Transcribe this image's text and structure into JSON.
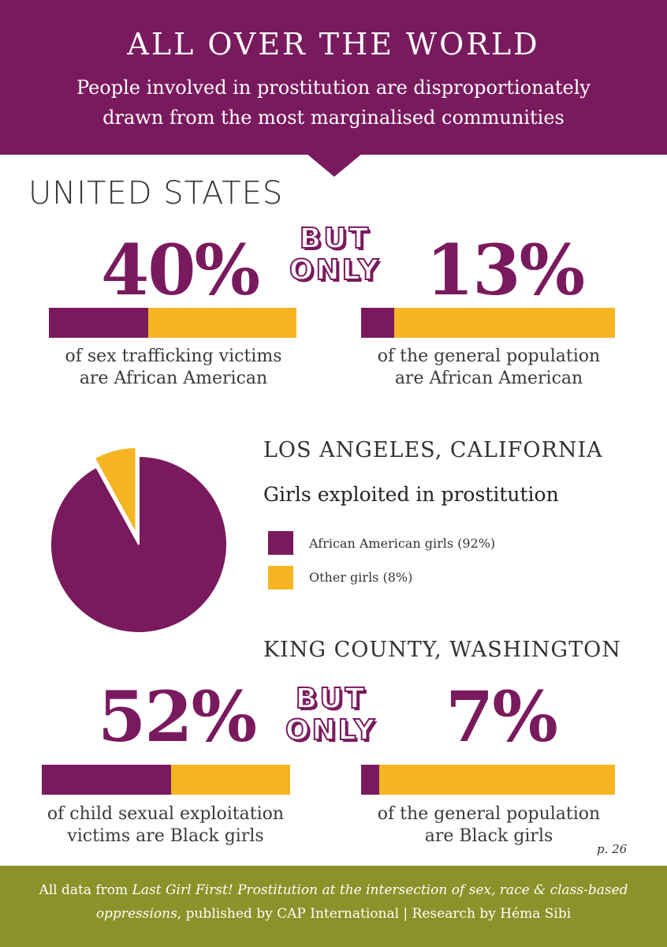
{
  "header": {
    "title": "ALL OVER THE WORLD",
    "subtitle_line1": "People involved in prostitution are disproportionately",
    "subtitle_line2": "drawn from the most marginalised communities"
  },
  "colors": {
    "purple": "#7a1a5e",
    "yellow": "#f5b523",
    "olive": "#8c9229"
  },
  "us": {
    "region": "UNITED STATES",
    "left_stat": "40%",
    "but_label": "BUT",
    "only_label": "ONLY",
    "right_stat": "13%",
    "left_caption_line1": "of sex trafficking victims",
    "left_caption_line2": "are African American",
    "right_caption_line1": "of the general population",
    "right_caption_line2": "are African American"
  },
  "la": {
    "region": "LOS ANGELES, CALIFORNIA",
    "chart_title": "Girls exploited in prostitution",
    "legend": [
      {
        "label": "African American girls (92%)",
        "color": "#7a1a5e"
      },
      {
        "label": "Other girls (8%)",
        "color": "#f5b523"
      }
    ]
  },
  "king": {
    "region": "KING COUNTY, WASHINGTON",
    "left_stat": "52%",
    "but_label": "BUT",
    "only_label": "ONLY",
    "right_stat": "7%",
    "left_caption_line1": "of child sexual exploitation",
    "left_caption_line2": "victims are Black girls",
    "right_caption_line1": "of the general population",
    "right_caption_line2": "are Black girls"
  },
  "page_number": "p. 26",
  "footer": {
    "prefix": "All data from ",
    "source_title_part1": "Last Girl First! Prostitution at the intersection of sex, race & class-based",
    "source_title_part2": "oppressions",
    "suffix": ", published by CAP International | Research by Héma Sibi"
  },
  "chart_data": [
    {
      "type": "bar",
      "categories": [
        "of sex trafficking victims are African American"
      ],
      "values": [
        40
      ],
      "ylim": [
        0,
        100
      ]
    },
    {
      "type": "bar",
      "categories": [
        "of the general population are African American"
      ],
      "values": [
        13
      ],
      "ylim": [
        0,
        100
      ]
    },
    {
      "type": "pie",
      "title": "Girls exploited in prostitution",
      "categories": [
        "African American girls (92%)",
        "Other girls (8%)"
      ],
      "values": [
        92,
        8
      ]
    },
    {
      "type": "bar",
      "categories": [
        "of child sexual exploitation victims are Black girls"
      ],
      "values": [
        52
      ],
      "ylim": [
        0,
        100
      ]
    },
    {
      "type": "bar",
      "categories": [
        "of the general population are Black girls"
      ],
      "values": [
        7
      ],
      "ylim": [
        0,
        100
      ]
    }
  ]
}
